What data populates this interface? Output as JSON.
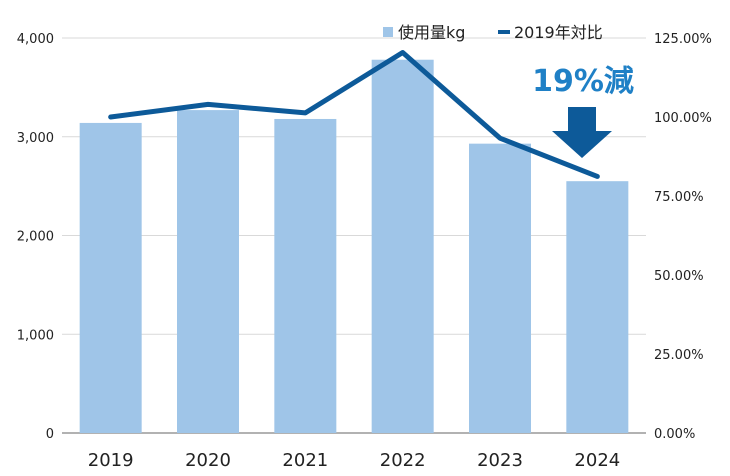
{
  "chart_data": {
    "type": "bar+line",
    "categories": [
      "2019",
      "2020",
      "2021",
      "2022",
      "2023",
      "2024"
    ],
    "series": [
      {
        "name": "使用量kg",
        "type": "bar",
        "axis": "left",
        "values": [
          3140,
          3270,
          3180,
          3780,
          2930,
          2550
        ],
        "color": "#9fc5e8"
      },
      {
        "name": "2019年対比",
        "type": "line",
        "axis": "right",
        "values": [
          100.0,
          104.0,
          101.3,
          120.4,
          93.3,
          81.2
        ],
        "color": "#0d5a99"
      }
    ],
    "y_left": {
      "min": 0,
      "max": 4000,
      "ticks": [
        "0",
        "1,000",
        "2,000",
        "3,000",
        "4,000"
      ]
    },
    "y_right": {
      "min": 0,
      "max": 125,
      "ticks": [
        "0.00%",
        "25.00%",
        "50.00%",
        "75.00%",
        "100.00%",
        "125.00%"
      ]
    },
    "grid": true,
    "legend_position": "top-right",
    "annotation": {
      "text": "19%減",
      "color": "#1f80c6",
      "arrow_color": "#0d5a99"
    }
  }
}
